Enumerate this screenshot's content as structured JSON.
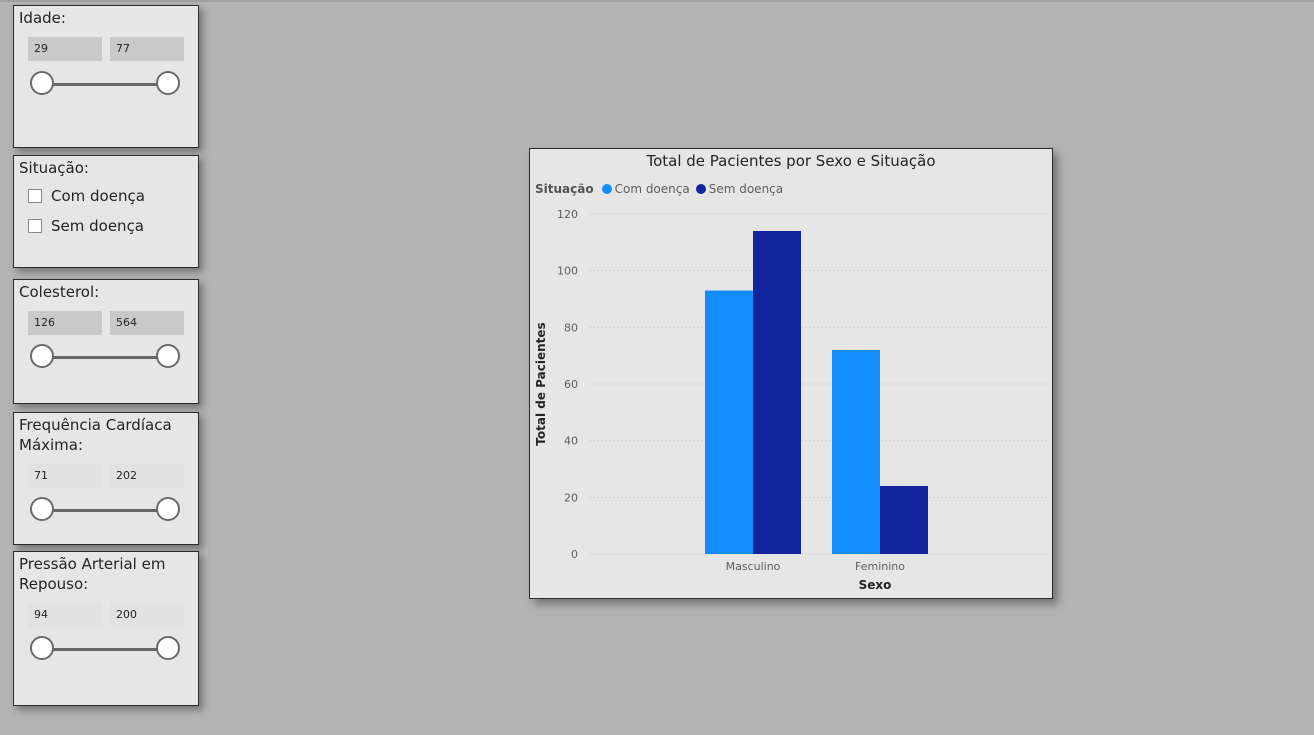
{
  "filters": {
    "idade": {
      "title": "Idade:",
      "min": "29",
      "max": "77"
    },
    "situacao": {
      "title": "Situação:",
      "options": [
        {
          "label": "Com doença",
          "checked": false
        },
        {
          "label": "Sem doença",
          "checked": false
        }
      ]
    },
    "colesterol": {
      "title": "Colesterol:",
      "min": "126",
      "max": "564"
    },
    "frequencia": {
      "title": "Frequência Cardíaca Máxima:",
      "min": "71",
      "max": "202"
    },
    "pressao": {
      "title": "Pressão Arterial em Repouso:",
      "min": "94",
      "max": "200"
    }
  },
  "chart_data": {
    "type": "bar",
    "title": "Total de Pacientes por Sexo e Situação",
    "legend_title": "Situação",
    "legend_position": "top-left",
    "xlabel": "Sexo",
    "ylabel": "Total de Pacientes",
    "categories": [
      "Masculino",
      "Feminino"
    ],
    "series": [
      {
        "name": "Com doença",
        "color": "#118dff",
        "values": [
          93,
          72
        ]
      },
      {
        "name": "Sem doença",
        "color": "#12239e",
        "values": [
          114,
          24
        ]
      }
    ],
    "ylim": [
      0,
      120
    ],
    "yticks": [
      "0",
      "20",
      "40",
      "60",
      "80",
      "100",
      "120"
    ],
    "grid": true
  }
}
